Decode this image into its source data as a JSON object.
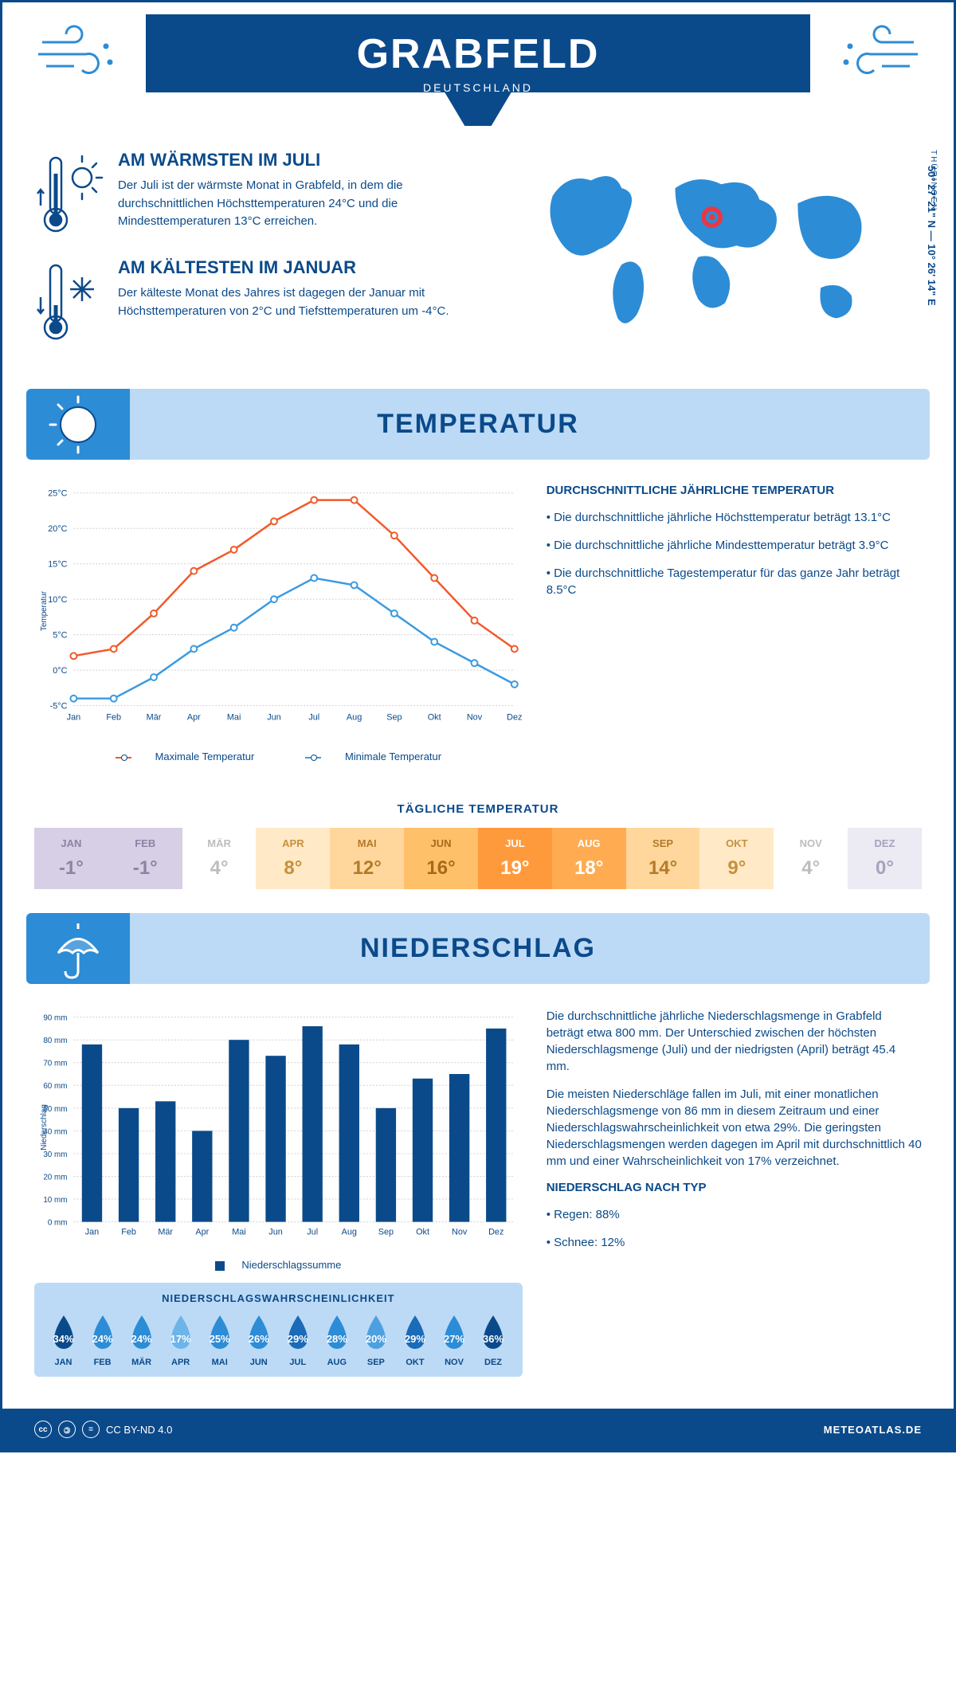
{
  "header": {
    "title": "GRABFELD",
    "subtitle": "DEUTSCHLAND"
  },
  "location": {
    "region": "THÜRINGEN",
    "coords": "50° 27' 21\" N — 10° 26' 14\" E"
  },
  "warmest": {
    "title": "AM WÄRMSTEN IM JULI",
    "text": "Der Juli ist der wärmste Monat in Grabfeld, in dem die durchschnittlichen Höchsttemperaturen 24°C und die Mindesttemperaturen 13°C erreichen."
  },
  "coldest": {
    "title": "AM KÄLTESTEN IM JANUAR",
    "text": "Der kälteste Monat des Jahres ist dagegen der Januar mit Höchsttemperaturen von 2°C und Tiefsttemperaturen um -4°C."
  },
  "temp_section": {
    "title": "TEMPERATUR"
  },
  "temp_chart": {
    "type": "line",
    "months": [
      "Jan",
      "Feb",
      "Mär",
      "Apr",
      "Mai",
      "Jun",
      "Jul",
      "Aug",
      "Sep",
      "Okt",
      "Nov",
      "Dez"
    ],
    "max_series": {
      "label": "Maximale Temperatur",
      "color": "#f15a29",
      "values": [
        2,
        3,
        8,
        14,
        17,
        21,
        24,
        24,
        19,
        13,
        7,
        3
      ]
    },
    "min_series": {
      "label": "Minimale Temperatur",
      "color": "#3b9ae1",
      "values": [
        -4,
        -4,
        -1,
        3,
        6,
        10,
        13,
        12,
        8,
        4,
        1,
        -2
      ]
    },
    "ylim": [
      -5,
      25
    ],
    "ytick_step": 5,
    "ylabel": "Temperatur",
    "grid_color": "#d0d0d0",
    "background": "#ffffff",
    "axis_fontsize": 11,
    "label_fontsize": 10
  },
  "temp_text": {
    "heading": "DURCHSCHNITTLICHE JÄHRLICHE TEMPERATUR",
    "b1": "• Die durchschnittliche jährliche Höchsttemperatur beträgt 13.1°C",
    "b2": "• Die durchschnittliche jährliche Mindesttemperatur beträgt 3.9°C",
    "b3": "• Die durchschnittliche Tagestemperatur für das ganze Jahr beträgt 8.5°C"
  },
  "daily": {
    "title": "TÄGLICHE TEMPERATUR",
    "months": [
      "JAN",
      "FEB",
      "MÄR",
      "APR",
      "MAI",
      "JUN",
      "JUL",
      "AUG",
      "SEP",
      "OKT",
      "NOV",
      "DEZ"
    ],
    "values": [
      "-1°",
      "-1°",
      "4°",
      "8°",
      "12°",
      "16°",
      "19°",
      "18°",
      "14°",
      "9°",
      "4°",
      "0°"
    ],
    "bg_colors": [
      "#d6cfe6",
      "#d6cfe6",
      "#ffffff",
      "#ffe9c7",
      "#ffd79d",
      "#ffc06a",
      "#ff9a3c",
      "#ffab52",
      "#ffd79d",
      "#ffe9c7",
      "#ffffff",
      "#eceaf2"
    ],
    "text_colors": [
      "#8b84a3",
      "#8b84a3",
      "#bdbdbd",
      "#c7903d",
      "#b57a28",
      "#a86a1a",
      "#ffffff",
      "#ffffff",
      "#b57a28",
      "#c7903d",
      "#bdbdbd",
      "#a8a2bd"
    ]
  },
  "precip_section": {
    "title": "NIEDERSCHLAG"
  },
  "precip_chart": {
    "type": "bar",
    "months": [
      "Jan",
      "Feb",
      "Mär",
      "Apr",
      "Mai",
      "Jun",
      "Jul",
      "Aug",
      "Sep",
      "Okt",
      "Nov",
      "Dez"
    ],
    "values": [
      78,
      50,
      53,
      40,
      80,
      73,
      86,
      78,
      50,
      63,
      65,
      85
    ],
    "bar_color": "#0b4a8a",
    "ylim": [
      0,
      90
    ],
    "ytick_step": 10,
    "ylabel": "Niederschlag",
    "legend": "Niederschlagssumme",
    "grid_color": "#d0d0d0",
    "bar_width": 0.55
  },
  "precip_text": {
    "p1": "Die durchschnittliche jährliche Niederschlagsmenge in Grabfeld beträgt etwa 800 mm. Der Unterschied zwischen der höchsten Niederschlagsmenge (Juli) und der niedrigsten (April) beträgt 45.4 mm.",
    "p2": "Die meisten Niederschläge fallen im Juli, mit einer monatlichen Niederschlagsmenge von 86 mm in diesem Zeitraum und einer Niederschlagswahrscheinlichkeit von etwa 29%. Die geringsten Niederschlagsmengen werden dagegen im April mit durchschnittlich 40 mm und einer Wahrscheinlichkeit von 17% verzeichnet.",
    "h": "NIEDERSCHLAG NACH TYP",
    "b1": "• Regen: 88%",
    "b2": "• Schnee: 12%"
  },
  "prob": {
    "title": "NIEDERSCHLAGSWAHRSCHEINLICHKEIT",
    "months": [
      "JAN",
      "FEB",
      "MÄR",
      "APR",
      "MAI",
      "JUN",
      "JUL",
      "AUG",
      "SEP",
      "OKT",
      "NOV",
      "DEZ"
    ],
    "values": [
      "34%",
      "24%",
      "24%",
      "17%",
      "25%",
      "26%",
      "29%",
      "28%",
      "20%",
      "29%",
      "27%",
      "36%"
    ],
    "colors": [
      "#0b4a8a",
      "#2d8cd6",
      "#2d8cd6",
      "#6db4e8",
      "#2d8cd6",
      "#2d8cd6",
      "#1a6bb8",
      "#2d8cd6",
      "#4da0e0",
      "#1a6bb8",
      "#2d8cd6",
      "#0b4a8a"
    ]
  },
  "footer": {
    "license": "CC BY-ND 4.0",
    "site": "METEOATLAS.DE"
  },
  "colors": {
    "primary": "#0b4a8a",
    "light": "#bcdaf6",
    "accent": "#2d8cd6",
    "orange": "#f15a29",
    "blue": "#3b9ae1"
  }
}
